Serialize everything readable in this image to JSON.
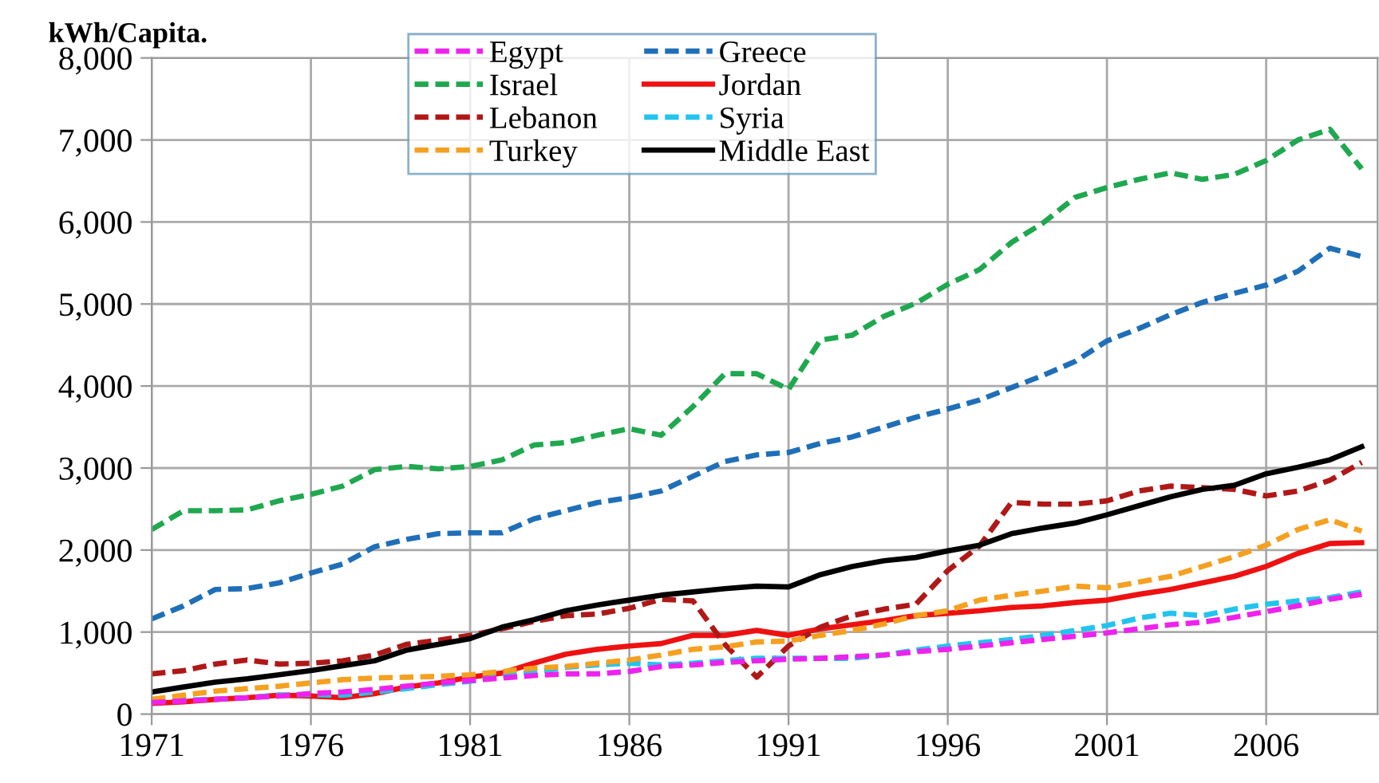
{
  "chart_data": {
    "type": "line",
    "ylabel": "kWh/Capita.",
    "x": [
      1971,
      1972,
      1973,
      1974,
      1975,
      1976,
      1977,
      1978,
      1979,
      1980,
      1981,
      1982,
      1983,
      1984,
      1985,
      1986,
      1987,
      1988,
      1989,
      1990,
      1991,
      1992,
      1993,
      1994,
      1995,
      1996,
      1997,
      1998,
      1999,
      2000,
      2001,
      2002,
      2003,
      2004,
      2005,
      2006,
      2007,
      2008,
      2009
    ],
    "xlim": [
      1971,
      2009.5
    ],
    "xticks": [
      1971,
      1976,
      1981,
      1986,
      1991,
      1996,
      2001,
      2006
    ],
    "ylim": [
      0,
      8000
    ],
    "yticks": [
      {
        "value": 0,
        "label": "0"
      },
      {
        "value": 1000,
        "label": "1,000"
      },
      {
        "value": 2000,
        "label": "2,000"
      },
      {
        "value": 3000,
        "label": "3,000"
      },
      {
        "value": 4000,
        "label": "4,000"
      },
      {
        "value": 5000,
        "label": "5,000"
      },
      {
        "value": 6000,
        "label": "6,000"
      },
      {
        "value": 7000,
        "label": "7,000"
      },
      {
        "value": 8000,
        "label": "8,000"
      }
    ],
    "grid": true,
    "legend": "top",
    "marker": "none",
    "series": [
      {
        "name": "Egypt",
        "color": "#ee22ee",
        "line_style": "dashed",
        "values": [
          140,
          160,
          180,
          200,
          220,
          250,
          270,
          300,
          340,
          380,
          410,
          440,
          470,
          490,
          490,
          520,
          580,
          600,
          630,
          650,
          670,
          680,
          700,
          720,
          760,
          790,
          830,
          870,
          910,
          950,
          990,
          1040,
          1090,
          1120,
          1180,
          1250,
          1320,
          1400,
          1460
        ]
      },
      {
        "name": "Greece",
        "color": "#1f6fb8",
        "line_style": "dashed",
        "values": [
          1160,
          1320,
          1520,
          1530,
          1600,
          1720,
          1830,
          2040,
          2130,
          2200,
          2210,
          2210,
          2380,
          2480,
          2580,
          2640,
          2720,
          2900,
          3080,
          3160,
          3190,
          3300,
          3380,
          3500,
          3620,
          3720,
          3830,
          3980,
          4130,
          4300,
          4550,
          4700,
          4870,
          5020,
          5130,
          5230,
          5400,
          5680,
          5580
        ]
      },
      {
        "name": "Israel",
        "color": "#1fa84f",
        "line_style": "dashed",
        "values": [
          2250,
          2480,
          2480,
          2490,
          2600,
          2680,
          2780,
          2980,
          3020,
          2990,
          3020,
          3100,
          3280,
          3310,
          3400,
          3480,
          3400,
          3750,
          4150,
          4150,
          3960,
          4560,
          4620,
          4850,
          5010,
          5240,
          5420,
          5750,
          5990,
          6300,
          6420,
          6520,
          6600,
          6520,
          6580,
          6750,
          7000,
          7130,
          6650
        ]
      },
      {
        "name": "Jordan",
        "color": "#ee1111",
        "line_style": "solid",
        "values": [
          130,
          150,
          180,
          200,
          230,
          220,
          200,
          250,
          330,
          380,
          450,
          500,
          620,
          730,
          790,
          830,
          860,
          960,
          960,
          1020,
          960,
          1040,
          1090,
          1140,
          1200,
          1230,
          1260,
          1300,
          1320,
          1360,
          1390,
          1460,
          1520,
          1600,
          1680,
          1800,
          1960,
          2080,
          2090
        ]
      },
      {
        "name": "Lebanon",
        "color": "#b01818",
        "line_style": "dashed",
        "values": [
          490,
          530,
          610,
          660,
          610,
          620,
          650,
          720,
          850,
          900,
          960,
          1040,
          1130,
          1200,
          1220,
          1290,
          1400,
          1380,
          850,
          450,
          830,
          1060,
          1200,
          1280,
          1340,
          1750,
          2050,
          2580,
          2560,
          2560,
          2600,
          2720,
          2780,
          2760,
          2740,
          2660,
          2720,
          2850,
          3070
        ]
      },
      {
        "name": "Syria",
        "color": "#22c4ee",
        "line_style": "dashed",
        "values": [
          160,
          170,
          180,
          200,
          230,
          240,
          230,
          270,
          310,
          360,
          400,
          460,
          510,
          570,
          600,
          620,
          600,
          620,
          650,
          680,
          680,
          680,
          680,
          720,
          780,
          830,
          870,
          910,
          960,
          1020,
          1080,
          1170,
          1230,
          1200,
          1280,
          1340,
          1380,
          1420,
          1490
        ]
      },
      {
        "name": "Turkey",
        "color": "#f5a020",
        "line_style": "dashed",
        "values": [
          180,
          230,
          280,
          310,
          340,
          380,
          420,
          440,
          450,
          460,
          480,
          520,
          560,
          580,
          620,
          660,
          720,
          790,
          820,
          880,
          890,
          960,
          1020,
          1100,
          1200,
          1260,
          1390,
          1450,
          1500,
          1560,
          1540,
          1610,
          1680,
          1800,
          1920,
          2060,
          2250,
          2370,
          2230
        ]
      },
      {
        "name": "Middle East",
        "color": "#000000",
        "line_style": "solid",
        "values": [
          270,
          330,
          390,
          430,
          480,
          530,
          590,
          650,
          780,
          850,
          920,
          1060,
          1150,
          1260,
          1330,
          1390,
          1450,
          1490,
          1530,
          1560,
          1550,
          1700,
          1800,
          1870,
          1910,
          1990,
          2060,
          2200,
          2270,
          2330,
          2430,
          2540,
          2650,
          2740,
          2790,
          2930,
          3010,
          3100,
          3260
        ]
      }
    ]
  }
}
